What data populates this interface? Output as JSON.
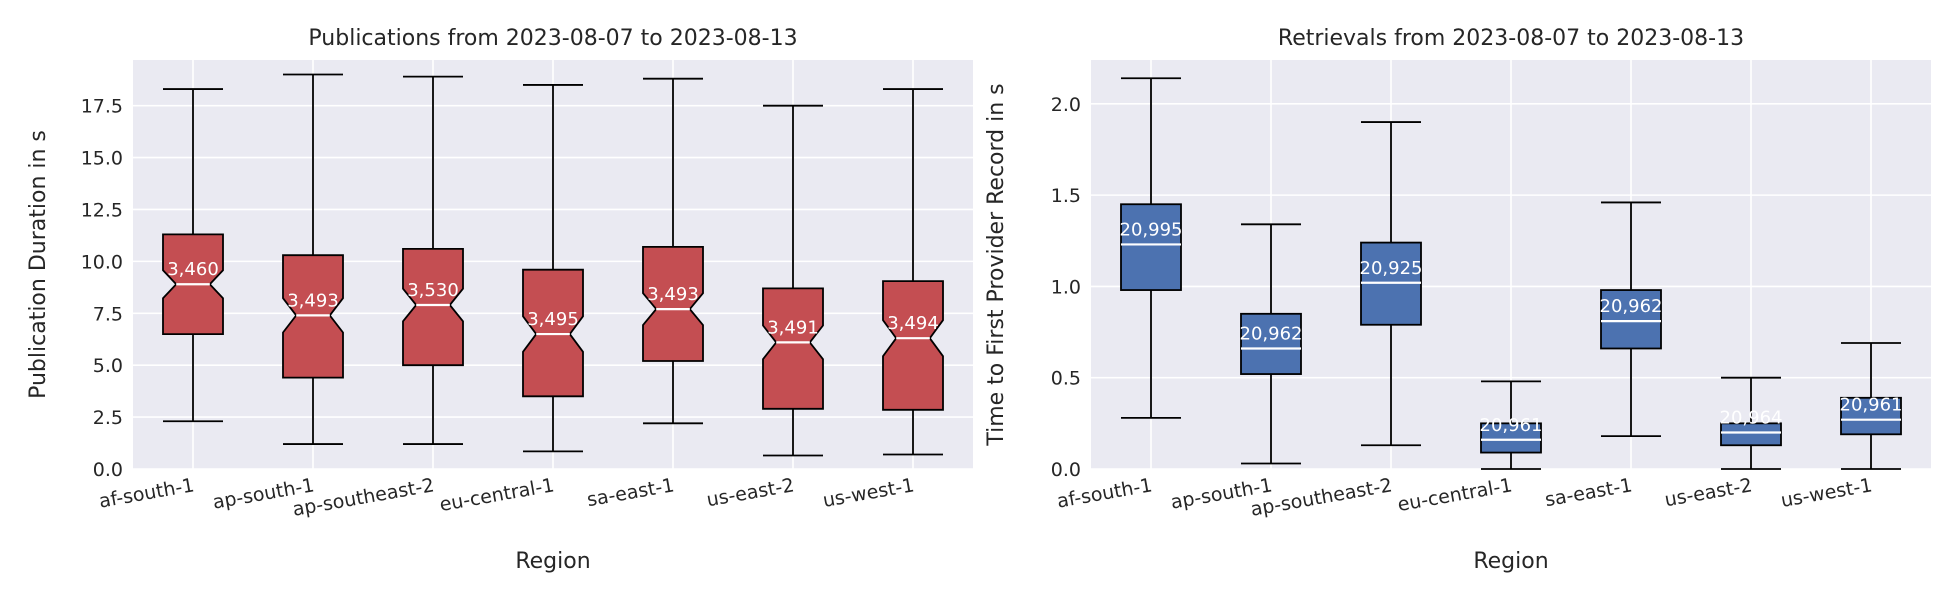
{
  "colors": {
    "background": "#eaeaf2",
    "grid": "#ffffff",
    "publications_box": "#c44e52",
    "retrievals_box": "#4c72b0",
    "median": "#ffffff",
    "whisker": "#000000"
  },
  "chart_data": [
    {
      "type": "box",
      "title": "Publications from 2023-08-07 to 2023-08-13",
      "xlabel": "Region",
      "ylabel": "Publication Duration in s",
      "ylim": [
        0,
        19.7
      ],
      "yticks": [
        "0.0",
        "2.5",
        "5.0",
        "7.5",
        "10.0",
        "12.5",
        "15.0",
        "17.5"
      ],
      "notched": true,
      "grid": true,
      "categories": [
        "af-south-1",
        "ap-south-1",
        "ap-southeast-2",
        "eu-central-1",
        "sa-east-1",
        "us-east-2",
        "us-west-1"
      ],
      "boxes": [
        {
          "whislo": 2.3,
          "q1": 6.5,
          "med": 8.9,
          "q3": 11.3,
          "whishi": 18.3,
          "count": "3,460"
        },
        {
          "whislo": 1.2,
          "q1": 4.4,
          "med": 7.4,
          "q3": 10.3,
          "whishi": 19.0,
          "count": "3,493"
        },
        {
          "whislo": 1.2,
          "q1": 5.0,
          "med": 7.9,
          "q3": 10.6,
          "whishi": 18.9,
          "count": "3,530"
        },
        {
          "whislo": 0.85,
          "q1": 3.5,
          "med": 6.5,
          "q3": 9.6,
          "whishi": 18.5,
          "count": "3,495"
        },
        {
          "whislo": 2.2,
          "q1": 5.2,
          "med": 7.7,
          "q3": 10.7,
          "whishi": 18.8,
          "count": "3,493"
        },
        {
          "whislo": 0.65,
          "q1": 2.9,
          "med": 6.1,
          "q3": 8.7,
          "whishi": 17.5,
          "count": "3,491"
        },
        {
          "whislo": 0.7,
          "q1": 2.85,
          "med": 6.3,
          "q3": 9.05,
          "whishi": 18.3,
          "count": "3,494"
        }
      ]
    },
    {
      "type": "box",
      "title": "Retrievals from 2023-08-07 to 2023-08-13",
      "xlabel": "Region",
      "ylabel": "Time to First Provider Record in s",
      "ylim": [
        0,
        2.24
      ],
      "yticks": [
        "0.0",
        "0.5",
        "1.0",
        "1.5",
        "2.0"
      ],
      "notched": false,
      "grid": true,
      "categories": [
        "af-south-1",
        "ap-south-1",
        "ap-southeast-2",
        "eu-central-1",
        "sa-east-1",
        "us-east-2",
        "us-west-1"
      ],
      "boxes": [
        {
          "whislo": 0.28,
          "q1": 0.98,
          "med": 1.23,
          "q3": 1.45,
          "whishi": 2.14,
          "count": "20,995"
        },
        {
          "whislo": 0.03,
          "q1": 0.52,
          "med": 0.66,
          "q3": 0.85,
          "whishi": 1.34,
          "count": "20,962"
        },
        {
          "whislo": 0.13,
          "q1": 0.79,
          "med": 1.02,
          "q3": 1.24,
          "whishi": 1.9,
          "count": "20,925"
        },
        {
          "whislo": 0.0,
          "q1": 0.09,
          "med": 0.16,
          "q3": 0.25,
          "whishi": 0.48,
          "count": "20,961"
        },
        {
          "whislo": 0.18,
          "q1": 0.66,
          "med": 0.81,
          "q3": 0.98,
          "whishi": 1.46,
          "count": "20,962"
        },
        {
          "whislo": 0.0,
          "q1": 0.13,
          "med": 0.2,
          "q3": 0.25,
          "whishi": 0.5,
          "count": "20,964"
        },
        {
          "whislo": 0.0,
          "q1": 0.19,
          "med": 0.27,
          "q3": 0.39,
          "whishi": 0.69,
          "count": "20,961"
        }
      ]
    }
  ]
}
